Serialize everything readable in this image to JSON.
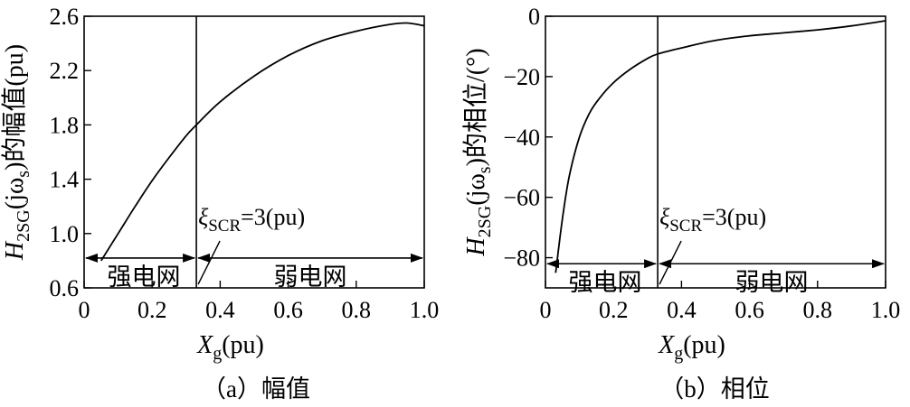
{
  "chart_data": [
    {
      "type": "line",
      "caption": "（a）幅值",
      "xlabel_main": "X",
      "xlabel_sub": "g",
      "xlabel_unit": "(pu)",
      "ylabel_main": "H",
      "ylabel_sub": "2SG",
      "ylabel_mid": "(jω",
      "ylabel_sub2": "s",
      "ylabel_tail": ")的幅值(pu)",
      "xlim": [
        0,
        1.0
      ],
      "ylim": [
        0.6,
        2.6
      ],
      "x_ticks": [
        0,
        0.2,
        0.4,
        0.6,
        0.8,
        1.0
      ],
      "x_tick_labels": [
        "0",
        "0.2",
        "0.4",
        "0.6",
        "0.8",
        "1.0"
      ],
      "y_ticks": [
        0.6,
        1.0,
        1.4,
        1.8,
        2.2,
        2.6
      ],
      "y_tick_labels": [
        "0.6",
        "1.0",
        "1.4",
        "1.8",
        "2.2",
        "2.6"
      ],
      "divider_x": 0.33,
      "arrow_y": 0.82,
      "regions": [
        "强电网",
        "弱电网"
      ],
      "annotation_main": "ξ",
      "annotation_sub": "SCR",
      "annotation_tail": "=3(pu)",
      "grid": false,
      "x": [
        0.05,
        0.1,
        0.15,
        0.2,
        0.25,
        0.3,
        0.33,
        0.4,
        0.5,
        0.6,
        0.7,
        0.8,
        0.9,
        0.95,
        1.0
      ],
      "y": [
        0.8,
        1.0,
        1.2,
        1.39,
        1.56,
        1.72,
        1.8,
        1.97,
        2.16,
        2.31,
        2.42,
        2.49,
        2.54,
        2.55,
        2.53
      ]
    },
    {
      "type": "line",
      "caption": "（b）相位",
      "xlabel_main": "X",
      "xlabel_sub": "g",
      "xlabel_unit": "(pu)",
      "ylabel_main": "H",
      "ylabel_sub": "2SG",
      "ylabel_mid": "(jω",
      "ylabel_sub2": "s",
      "ylabel_tail": ")的相位/(°)",
      "xlim": [
        0,
        1.0
      ],
      "ylim": [
        -90,
        0
      ],
      "x_ticks": [
        0,
        0.2,
        0.4,
        0.6,
        0.8,
        1.0
      ],
      "x_tick_labels": [
        "0",
        "0.2",
        "0.4",
        "0.6",
        "0.8",
        "1.0"
      ],
      "y_ticks": [
        -80,
        -60,
        -40,
        -20,
        0
      ],
      "y_tick_labels": [
        "−80",
        "−60",
        "−40",
        "−20",
        "0"
      ],
      "divider_x": 0.33,
      "arrow_y": -82,
      "regions": [
        "强电网",
        "弱电网"
      ],
      "annotation_main": "ξ",
      "annotation_sub": "SCR",
      "annotation_tail": "=3(pu)",
      "grid": false,
      "x": [
        0.03,
        0.05,
        0.07,
        0.1,
        0.13,
        0.16,
        0.2,
        0.25,
        0.3,
        0.33,
        0.4,
        0.5,
        0.6,
        0.7,
        0.8,
        0.9,
        1.0
      ],
      "y": [
        -85,
        -67,
        -53,
        -40,
        -32,
        -27,
        -22,
        -17.5,
        -14,
        -12.5,
        -10.5,
        -8,
        -6.5,
        -5.5,
        -4.5,
        -3.2,
        -1.5
      ]
    }
  ]
}
